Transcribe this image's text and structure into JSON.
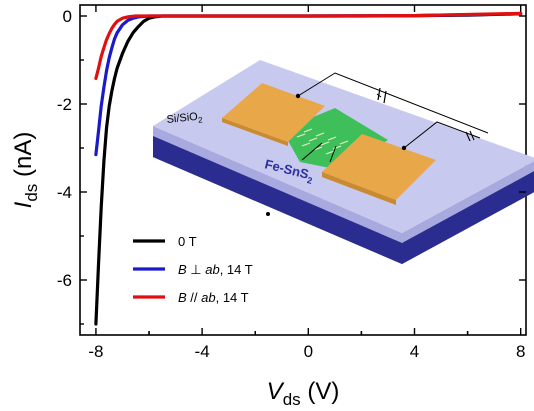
{
  "chart_data": {
    "type": "line",
    "xlabel": {
      "main": "V",
      "sub": "ds",
      "unit": " (V)"
    },
    "ylabel": {
      "main": "I",
      "sub": "ds",
      "unit": " (nA)"
    },
    "xlim": [
      -8.6,
      8.2
    ],
    "ylim": [
      -7.25,
      0.25
    ],
    "x_ticks": [
      -8,
      -4,
      0,
      4,
      8
    ],
    "x_tick_labels": [
      "-8",
      "-4",
      "0",
      "4",
      "8"
    ],
    "y_ticks": [
      0,
      -2,
      -4,
      -6
    ],
    "y_tick_labels": [
      "0",
      "-2",
      "-4",
      "-6"
    ],
    "legend": {
      "placement": "bottom-left"
    },
    "series": [
      {
        "label_parts": [
          "0 T"
        ],
        "italic_mask": [
          false
        ],
        "color": "#000000",
        "points": [
          [
            -8.0,
            -7.0
          ],
          [
            -7.9,
            -5.6
          ],
          [
            -7.8,
            -4.35
          ],
          [
            -7.7,
            -3.3
          ],
          [
            -7.6,
            -2.55
          ],
          [
            -7.5,
            -2.05
          ],
          [
            -7.4,
            -1.7
          ],
          [
            -7.3,
            -1.42
          ],
          [
            -7.2,
            -1.18
          ],
          [
            -7.0,
            -0.85
          ],
          [
            -6.8,
            -0.58
          ],
          [
            -6.6,
            -0.38
          ],
          [
            -6.4,
            -0.24
          ],
          [
            -6.2,
            -0.12
          ],
          [
            -6.0,
            -0.05
          ],
          [
            -5.8,
            -0.02
          ],
          [
            -5.5,
            0.0
          ],
          [
            -5.0,
            0.0
          ],
          [
            -2.0,
            0.0
          ],
          [
            0.0,
            0.0
          ],
          [
            2.0,
            0.0
          ],
          [
            4.0,
            0.01
          ],
          [
            6.0,
            0.02
          ],
          [
            8.0,
            0.05
          ]
        ]
      },
      {
        "label_parts": [
          "B",
          " ⊥ ",
          "ab",
          ", 14 T"
        ],
        "italic_mask": [
          true,
          false,
          true,
          false
        ],
        "color": "#1a1acc",
        "points": [
          [
            -8.0,
            -3.15
          ],
          [
            -7.9,
            -2.6
          ],
          [
            -7.8,
            -2.05
          ],
          [
            -7.7,
            -1.62
          ],
          [
            -7.6,
            -1.25
          ],
          [
            -7.5,
            -0.95
          ],
          [
            -7.4,
            -0.72
          ],
          [
            -7.3,
            -0.52
          ],
          [
            -7.2,
            -0.38
          ],
          [
            -7.0,
            -0.2
          ],
          [
            -6.8,
            -0.1
          ],
          [
            -6.6,
            -0.05
          ],
          [
            -6.4,
            -0.02
          ],
          [
            -6.0,
            0.0
          ],
          [
            -4.0,
            0.0
          ],
          [
            0.0,
            0.0
          ],
          [
            4.0,
            0.01
          ],
          [
            8.0,
            0.05
          ]
        ]
      },
      {
        "label_parts": [
          "B",
          " // ",
          "ab",
          ", 14 T"
        ],
        "italic_mask": [
          true,
          false,
          true,
          false
        ],
        "color": "#e01010",
        "points": [
          [
            -8.0,
            -1.42
          ],
          [
            -7.9,
            -1.18
          ],
          [
            -7.8,
            -0.92
          ],
          [
            -7.7,
            -0.72
          ],
          [
            -7.6,
            -0.54
          ],
          [
            -7.5,
            -0.4
          ],
          [
            -7.4,
            -0.28
          ],
          [
            -7.3,
            -0.19
          ],
          [
            -7.2,
            -0.12
          ],
          [
            -7.0,
            -0.05
          ],
          [
            -6.8,
            -0.02
          ],
          [
            -6.5,
            0.0
          ],
          [
            -4.0,
            0.0
          ],
          [
            0.0,
            0.0
          ],
          [
            4.0,
            0.01
          ],
          [
            8.0,
            0.06
          ]
        ]
      }
    ]
  },
  "inset": {
    "substrate_label": {
      "main": "Si/SiO",
      "sub": "2"
    },
    "material_label": {
      "main": "Fe-SnS",
      "sub": "2"
    },
    "colors": {
      "substrate_top": "#c8c9ee",
      "substrate_face": "#a7a9df",
      "base_face": "#2a2d8f",
      "electrode": "#e8a84a",
      "flake": "#3fbf5a",
      "material_text": "#2b2fa0"
    }
  }
}
